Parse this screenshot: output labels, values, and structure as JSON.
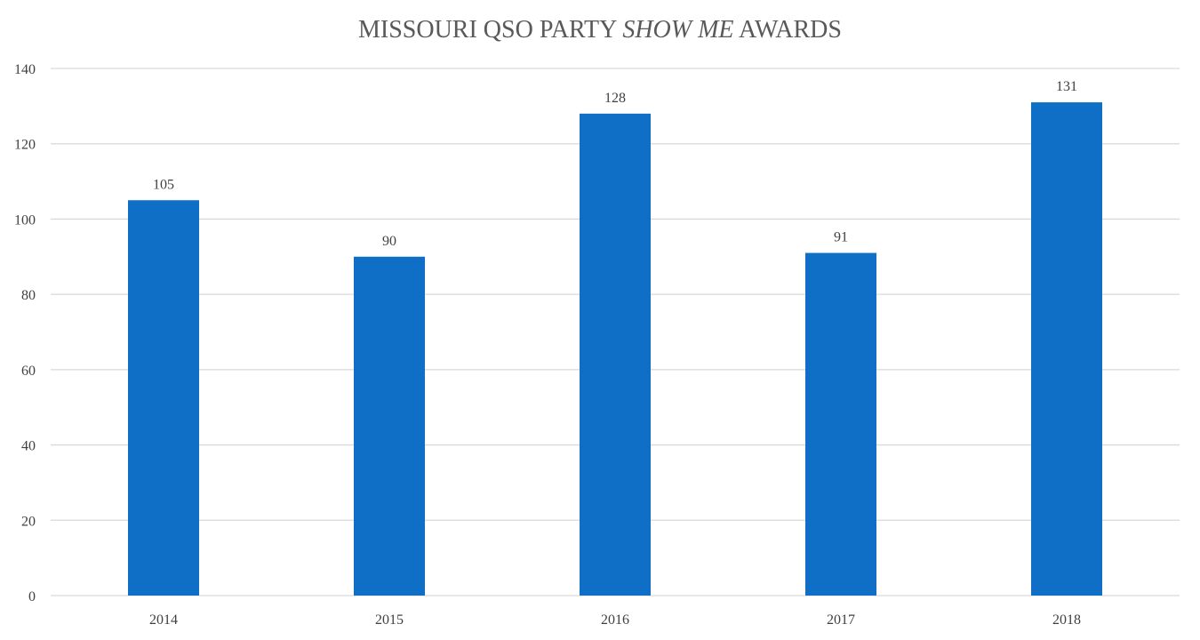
{
  "chart_data": {
    "type": "bar",
    "title": {
      "pre": "MISSOURI QSO PARTY ",
      "italic": "SHOW ME",
      "post": " AWARDS"
    },
    "categories": [
      "2014",
      "2015",
      "2016",
      "2017",
      "2018"
    ],
    "values": [
      105,
      90,
      128,
      91,
      131
    ],
    "data_labels": [
      "105",
      "90",
      "128",
      "91",
      "131"
    ],
    "y_ticks": [
      0,
      20,
      40,
      60,
      80,
      100,
      120,
      140
    ],
    "ylim": [
      0,
      140
    ],
    "xlabel": "",
    "ylabel": "",
    "grid": true,
    "legend": "none",
    "bar_color": "#0f6ec6"
  }
}
